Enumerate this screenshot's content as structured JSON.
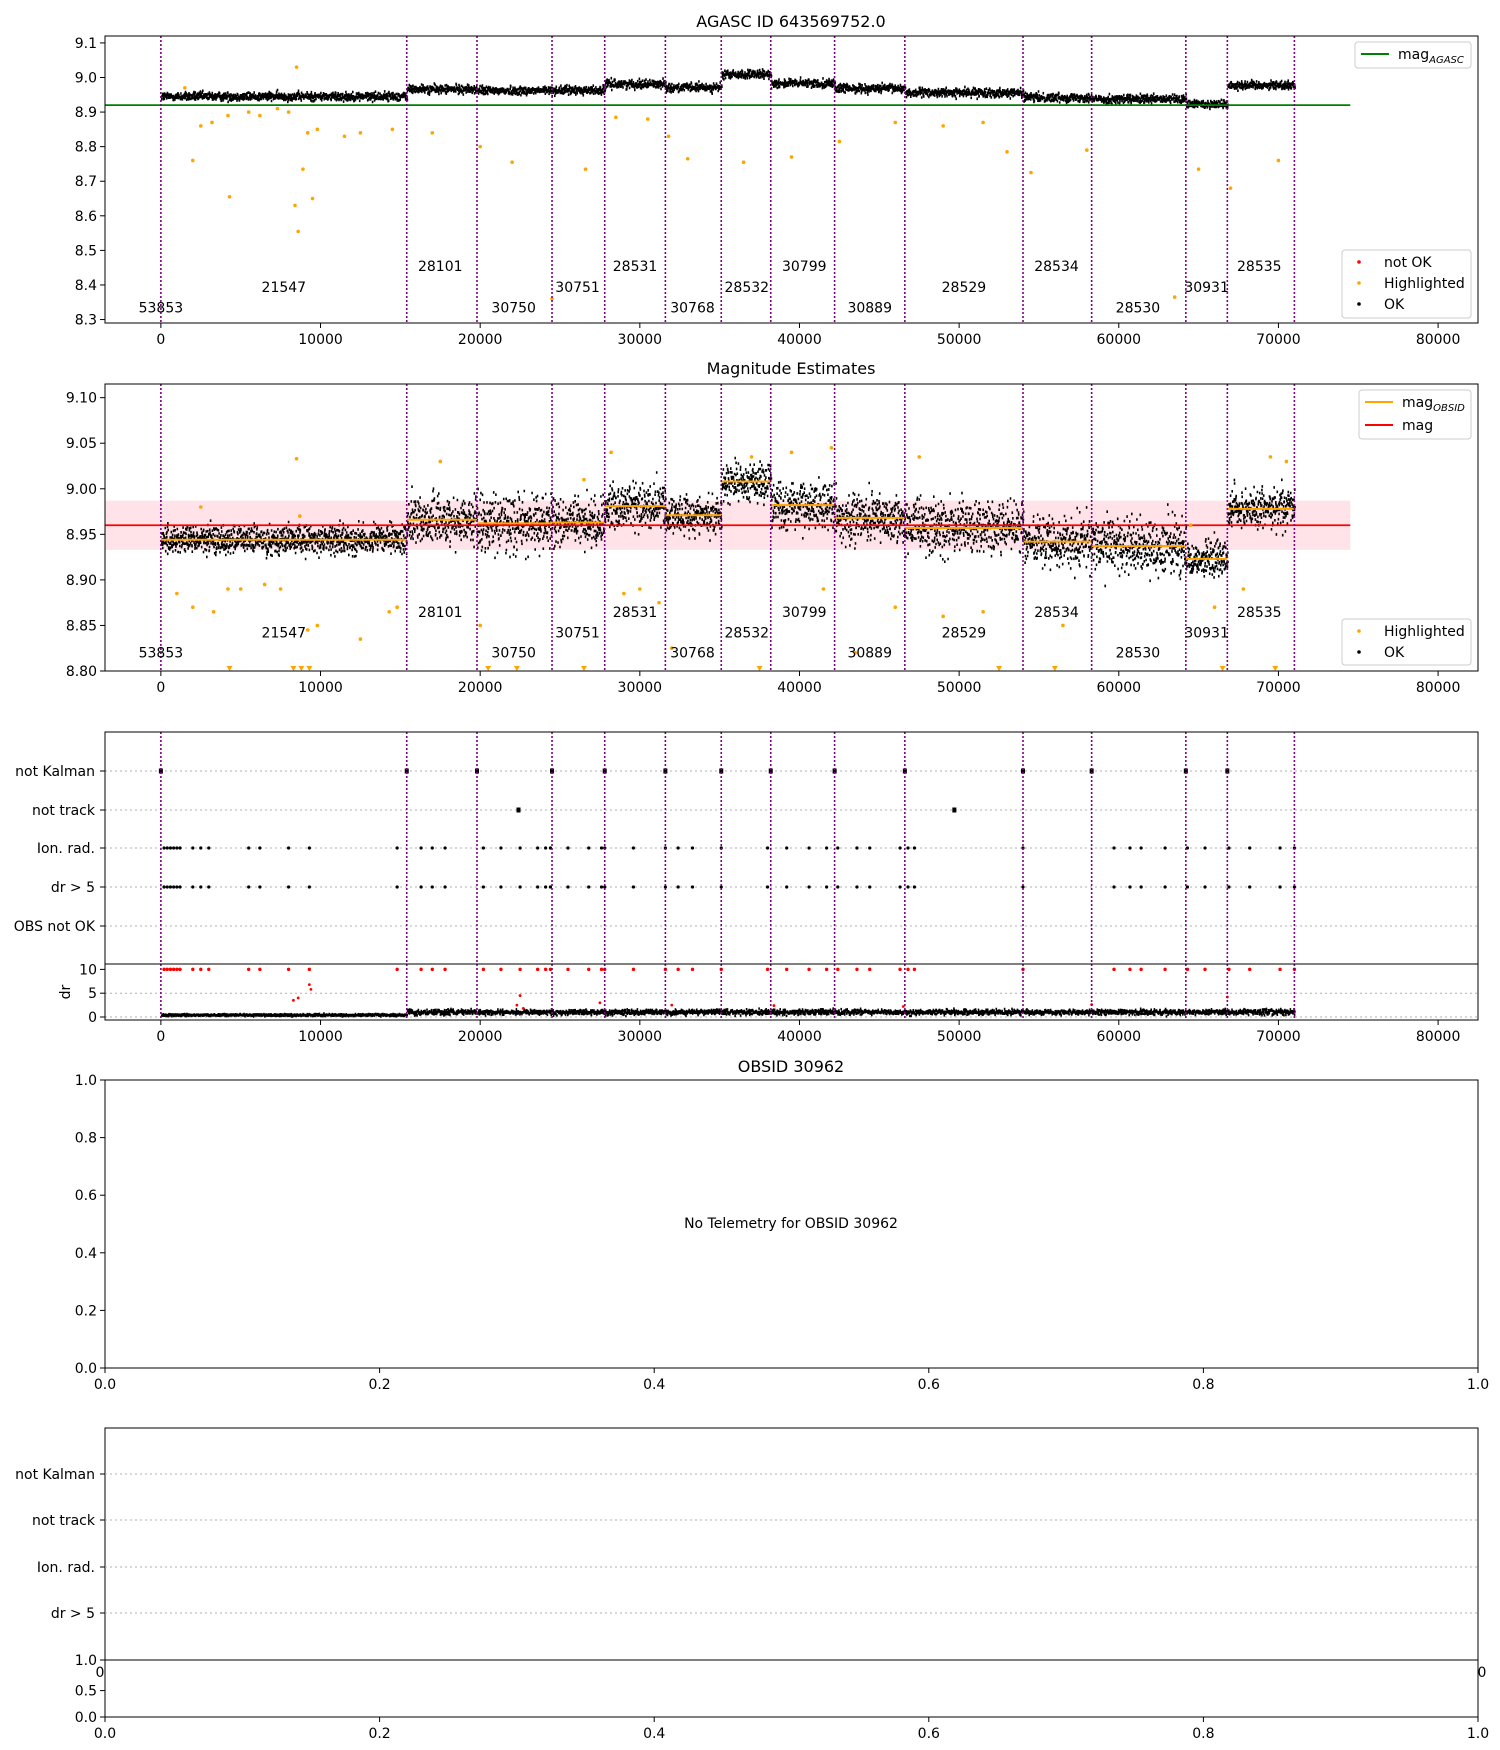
{
  "figure": {
    "title1": "AGASC ID 643569752.0",
    "title2": "Magnitude Estimates",
    "title4": "OBSID 30962",
    "no_telemetry": "No Telemetry for OBSID 30962"
  },
  "colors": {
    "ok": "#000000",
    "highlighted": "#ffa500",
    "not_ok": "#ff0000",
    "agasc_line": "#008000",
    "mean_line": "#ff0000",
    "band": "#ffc0cb",
    "obs_line": "#800080",
    "obsid_mag": "#ffa500",
    "grid": "#b0b0b0"
  },
  "chart_data": [
    {
      "type": "scatter",
      "title": "AGASC ID 643569752.0",
      "xlim": [
        -3500,
        82500
      ],
      "ylim": [
        8.29,
        9.12
      ],
      "xticks": [
        0,
        10000,
        20000,
        30000,
        40000,
        50000,
        60000,
        70000,
        80000
      ],
      "xtick_labels": [
        "0",
        "10000",
        "20000",
        "30000",
        "40000",
        "50000",
        "60000",
        "70000",
        "80000"
      ],
      "yticks": [
        8.3,
        8.4,
        8.5,
        8.6,
        8.7,
        8.8,
        8.9,
        9.0,
        9.1
      ],
      "ytick_labels": [
        "8.3",
        "8.4",
        "8.5",
        "8.6",
        "8.7",
        "8.8",
        "8.9",
        "9.0",
        "9.1"
      ],
      "mag_agasc": 8.92,
      "mag_agasc_xrange": [
        -3500,
        74500
      ],
      "legend_upper": {
        "position": "top-right",
        "entries": [
          {
            "name": "mag",
            "sub": "AGASC"
          }
        ]
      },
      "legend_lower": {
        "position": "bottom-right",
        "entries": [
          "not OK",
          "Highlighted",
          "OK"
        ]
      },
      "obsid_boundaries": [
        0,
        15400,
        19800,
        24500,
        27800,
        31600,
        35100,
        38200,
        42200,
        46600,
        54000,
        58300,
        64200,
        66800,
        71000
      ],
      "obsids": [
        {
          "label": "53853",
          "x": 0,
          "y": 8.32
        },
        {
          "label": "21547",
          "x": 7700,
          "y": 8.38
        },
        {
          "label": "28101",
          "x": 17500,
          "y": 8.44
        },
        {
          "label": "30750",
          "x": 22100,
          "y": 8.32
        },
        {
          "label": "30751",
          "x": 26100,
          "y": 8.38
        },
        {
          "label": "28531",
          "x": 29700,
          "y": 8.44
        },
        {
          "label": "30768",
          "x": 33300,
          "y": 8.32
        },
        {
          "label": "28532",
          "x": 36700,
          "y": 8.38
        },
        {
          "label": "30799",
          "x": 40300,
          "y": 8.44
        },
        {
          "label": "30889",
          "x": 44400,
          "y": 8.32
        },
        {
          "label": "28529",
          "x": 50300,
          "y": 8.38
        },
        {
          "label": "28534",
          "x": 56100,
          "y": 8.44
        },
        {
          "label": "28530",
          "x": 61200,
          "y": 8.32
        },
        {
          "label": "30931",
          "x": 65500,
          "y": 8.38
        },
        {
          "label": "28535",
          "x": 68800,
          "y": 8.44
        }
      ],
      "segments": [
        {
          "x": [
            0,
            15400
          ],
          "mag": 8.945
        },
        {
          "x": [
            15400,
            19800
          ],
          "mag": 8.966
        },
        {
          "x": [
            19800,
            24500
          ],
          "mag": 8.962
        },
        {
          "x": [
            24500,
            27800
          ],
          "mag": 8.963
        },
        {
          "x": [
            27800,
            31600
          ],
          "mag": 8.981
        },
        {
          "x": [
            31600,
            35100
          ],
          "mag": 8.971
        },
        {
          "x": [
            35100,
            38200
          ],
          "mag": 9.008
        },
        {
          "x": [
            38200,
            42200
          ],
          "mag": 8.983
        },
        {
          "x": [
            42200,
            46600
          ],
          "mag": 8.968
        },
        {
          "x": [
            46600,
            54000
          ],
          "mag": 8.956
        },
        {
          "x": [
            54000,
            58300
          ],
          "mag": 8.942
        },
        {
          "x": [
            58300,
            64200
          ],
          "mag": 8.937
        },
        {
          "x": [
            64200,
            66800
          ],
          "mag": 8.923
        },
        {
          "x": [
            66800,
            71000
          ],
          "mag": 8.978
        }
      ],
      "highlighted_points": [
        [
          1500,
          8.97
        ],
        [
          2500,
          8.86
        ],
        [
          3200,
          8.87
        ],
        [
          4200,
          8.89
        ],
        [
          4300,
          8.655
        ],
        [
          5500,
          8.9
        ],
        [
          6200,
          8.89
        ],
        [
          7300,
          8.91
        ],
        [
          8000,
          8.9
        ],
        [
          8400,
          8.63
        ],
        [
          8500,
          9.03
        ],
        [
          8600,
          8.555
        ],
        [
          8900,
          8.735
        ],
        [
          9200,
          8.84
        ],
        [
          9500,
          8.65
        ],
        [
          9800,
          8.85
        ],
        [
          11500,
          8.83
        ],
        [
          12500,
          8.84
        ],
        [
          14500,
          8.85
        ],
        [
          17000,
          8.84
        ],
        [
          20000,
          8.8
        ],
        [
          22000,
          8.755
        ],
        [
          24500,
          8.36
        ],
        [
          26600,
          8.735
        ],
        [
          28500,
          8.885
        ],
        [
          30500,
          8.88
        ],
        [
          31800,
          8.83
        ],
        [
          33000,
          8.765
        ],
        [
          36500,
          8.755
        ],
        [
          39500,
          8.77
        ],
        [
          42500,
          8.815
        ],
        [
          46000,
          8.87
        ],
        [
          49000,
          8.86
        ],
        [
          51500,
          8.87
        ],
        [
          53000,
          8.785
        ],
        [
          54500,
          8.725
        ],
        [
          58000,
          8.79
        ],
        [
          63500,
          8.365
        ],
        [
          65000,
          8.735
        ],
        [
          67000,
          8.68
        ],
        [
          70000,
          8.76
        ],
        [
          2000,
          8.76
        ]
      ]
    },
    {
      "type": "scatter",
      "title": "Magnitude Estimates",
      "xlim": [
        -3500,
        82500
      ],
      "ylim": [
        8.8,
        9.115
      ],
      "xticks": [
        0,
        10000,
        20000,
        30000,
        40000,
        50000,
        60000,
        70000,
        80000
      ],
      "xtick_labels": [
        "0",
        "10000",
        "20000",
        "30000",
        "40000",
        "50000",
        "60000",
        "70000",
        "80000"
      ],
      "yticks": [
        8.8,
        8.85,
        8.9,
        8.95,
        9.0,
        9.05,
        9.1
      ],
      "ytick_labels": [
        "8.80",
        "8.85",
        "8.90",
        "8.95",
        "9.00",
        "9.05",
        "9.10"
      ],
      "mean_mag": 8.96,
      "mean_band": [
        8.933,
        8.987
      ],
      "legend_upper": {
        "position": "top-right",
        "entries": [
          {
            "name": "mag",
            "sub": "OBSID"
          },
          {
            "name": "mag",
            "sub": ""
          }
        ]
      },
      "legend_lower": {
        "position": "bottom-right",
        "entries": [
          "Highlighted",
          "OK"
        ]
      },
      "obsids": [
        {
          "label": "53853",
          "x": 0,
          "y": 8.815
        },
        {
          "label": "21547",
          "x": 7700,
          "y": 8.837
        },
        {
          "label": "28101",
          "x": 17500,
          "y": 8.859
        },
        {
          "label": "30750",
          "x": 22100,
          "y": 8.815
        },
        {
          "label": "30751",
          "x": 26100,
          "y": 8.837
        },
        {
          "label": "28531",
          "x": 29700,
          "y": 8.859
        },
        {
          "label": "30768",
          "x": 33300,
          "y": 8.815
        },
        {
          "label": "28532",
          "x": 36700,
          "y": 8.837
        },
        {
          "label": "30799",
          "x": 40300,
          "y": 8.859
        },
        {
          "label": "30889",
          "x": 44400,
          "y": 8.815
        },
        {
          "label": "28529",
          "x": 50300,
          "y": 8.837
        },
        {
          "label": "28534",
          "x": 56100,
          "y": 8.859
        },
        {
          "label": "28530",
          "x": 61200,
          "y": 8.815
        },
        {
          "label": "30931",
          "x": 65500,
          "y": 8.837
        },
        {
          "label": "28535",
          "x": 68800,
          "y": 8.859
        }
      ],
      "segment_mags": [
        8.944,
        8.966,
        8.962,
        8.963,
        8.981,
        8.971,
        9.008,
        8.982,
        8.968,
        8.957,
        8.942,
        8.937,
        8.923,
        8.978
      ],
      "segment_spread": [
        0.015,
        0.025,
        0.03,
        0.025,
        0.025,
        0.02,
        0.02,
        0.025,
        0.025,
        0.03,
        0.025,
        0.03,
        0.02,
        0.022
      ],
      "highlighted_points": [
        [
          1000,
          8.885
        ],
        [
          2000,
          8.87
        ],
        [
          2500,
          8.98
        ],
        [
          3300,
          8.865
        ],
        [
          4200,
          8.89
        ],
        [
          5000,
          8.89
        ],
        [
          6500,
          8.895
        ],
        [
          7500,
          8.89
        ],
        [
          8500,
          9.033
        ],
        [
          8700,
          8.97
        ],
        [
          9200,
          8.845
        ],
        [
          9800,
          8.85
        ],
        [
          12500,
          8.835
        ],
        [
          14300,
          8.865
        ],
        [
          14800,
          8.87
        ],
        [
          17500,
          9.03
        ],
        [
          20000,
          8.85
        ],
        [
          26500,
          9.01
        ],
        [
          28200,
          9.04
        ],
        [
          29000,
          8.885
        ],
        [
          30000,
          8.89
        ],
        [
          31200,
          8.875
        ],
        [
          32000,
          8.825
        ],
        [
          37000,
          9.035
        ],
        [
          39500,
          9.04
        ],
        [
          41500,
          8.89
        ],
        [
          42000,
          9.045
        ],
        [
          43500,
          8.82
        ],
        [
          46000,
          8.87
        ],
        [
          47500,
          9.035
        ],
        [
          49000,
          8.86
        ],
        [
          51500,
          8.865
        ],
        [
          56500,
          8.85
        ],
        [
          64500,
          8.96
        ],
        [
          66000,
          8.87
        ],
        [
          67800,
          8.89
        ],
        [
          69500,
          9.035
        ],
        [
          70500,
          9.03
        ],
        [
          4300,
          8.8
        ],
        [
          8300,
          8.8
        ],
        [
          8800,
          8.8
        ],
        [
          9300,
          8.8
        ],
        [
          20500,
          8.8
        ],
        [
          22300,
          8.8
        ],
        [
          26500,
          8.8
        ],
        [
          37500,
          8.8
        ],
        [
          52500,
          8.8
        ],
        [
          56000,
          8.8
        ],
        [
          66500,
          8.8
        ],
        [
          69800,
          8.8
        ]
      ]
    },
    {
      "type": "scatter",
      "title": "",
      "xlim": [
        -3500,
        82500
      ],
      "flag_labels": [
        "not Kalman",
        "not track",
        "Ion. rad.",
        "dr > 5",
        "OBS not OK"
      ],
      "dr_ylim": [
        0,
        10.5
      ],
      "dr_yticks": [
        0,
        5,
        10
      ],
      "dr_ytick_labels": [
        "0",
        "5",
        "10"
      ],
      "dr_ylabel": "dr",
      "xticks": [
        0,
        10000,
        20000,
        30000,
        40000,
        50000,
        60000,
        70000,
        80000
      ],
      "xtick_labels": [
        "0",
        "10000",
        "20000",
        "30000",
        "40000",
        "50000",
        "60000",
        "70000",
        "80000"
      ],
      "not_kalman_x": [
        0,
        15400,
        19800,
        24500,
        27800,
        31600,
        35100,
        38200,
        42200,
        46600,
        54000,
        58300,
        64200,
        66800
      ],
      "not_track_x": [
        22400,
        49700
      ],
      "ion_rad_x": [
        200,
        400,
        600,
        800,
        1000,
        1200,
        2000,
        2500,
        3000,
        5500,
        6200,
        8000,
        9300,
        14800,
        16300,
        17000,
        17800,
        20200,
        21300,
        22500,
        23600,
        24100,
        24400,
        25500,
        26800,
        27600,
        27800,
        29600,
        31600,
        32400,
        33300,
        35100,
        38000,
        39200,
        40600,
        41700,
        42400,
        43600,
        44400,
        46300,
        46800,
        47200,
        54000,
        59700,
        60700,
        61400,
        62900,
        64300,
        65400,
        66900,
        68200,
        70100,
        71000
      ],
      "dr_gt5_x": [
        200,
        400,
        600,
        800,
        1000,
        1200,
        2000,
        2500,
        3000,
        5500,
        6200,
        8000,
        9300,
        14800,
        16300,
        17000,
        17800,
        20200,
        21300,
        22500,
        23600,
        24100,
        24400,
        25500,
        26800,
        27600,
        27800,
        29600,
        31600,
        32400,
        33300,
        35100,
        38000,
        39200,
        40600,
        41700,
        42400,
        43600,
        44400,
        46300,
        46800,
        47200,
        54000,
        59700,
        60700,
        61400,
        62900,
        64300,
        65400,
        66900,
        68200,
        70100,
        71000
      ],
      "dr_red_points": [
        [
          8300,
          3.5
        ],
        [
          8600,
          4.0
        ],
        [
          9300,
          6.8
        ],
        [
          9400,
          5.8
        ],
        [
          22300,
          2.5
        ],
        [
          22500,
          4.5
        ],
        [
          22700,
          1.8
        ],
        [
          27500,
          3.0
        ],
        [
          32000,
          2.5
        ],
        [
          38400,
          2.4
        ],
        [
          46500,
          2.2
        ],
        [
          58300,
          2.6
        ],
        [
          66800,
          4.2
        ]
      ],
      "dr_level_ok": [
        0.4,
        1.0
      ]
    },
    {
      "type": "scatter",
      "title": "OBSID 30962",
      "xlim": [
        0,
        1
      ],
      "ylim": [
        0,
        1
      ],
      "xticks": [
        0,
        0.2,
        0.4,
        0.6,
        0.8,
        1.0
      ],
      "xtick_labels": [
        "0.0",
        "0.2",
        "0.4",
        "0.6",
        "0.8",
        "1.0"
      ],
      "yticks": [
        0,
        0.2,
        0.4,
        0.6,
        0.8,
        1.0
      ],
      "ytick_labels": [
        "0.0",
        "0.2",
        "0.4",
        "0.6",
        "0.8",
        "1.0"
      ],
      "note": "No Telemetry for OBSID 30962"
    },
    {
      "type": "scatter",
      "title": "",
      "flag_labels": [
        "not Kalman",
        "not track",
        "Ion. rad.",
        "dr > 5"
      ],
      "sub_yticks": [
        0,
        0.5,
        1.0
      ],
      "sub_ytick_labels": [
        "0.0",
        "0.5",
        "1.0"
      ],
      "xticks": [
        0,
        0.2,
        0.4,
        0.6,
        0.8,
        1.0
      ],
      "xtick_labels": [
        "0.0",
        "0.2",
        "0.4",
        "0.6",
        "0.8",
        "1.0"
      ],
      "overlap_labels": [
        "0",
        "0"
      ]
    }
  ]
}
